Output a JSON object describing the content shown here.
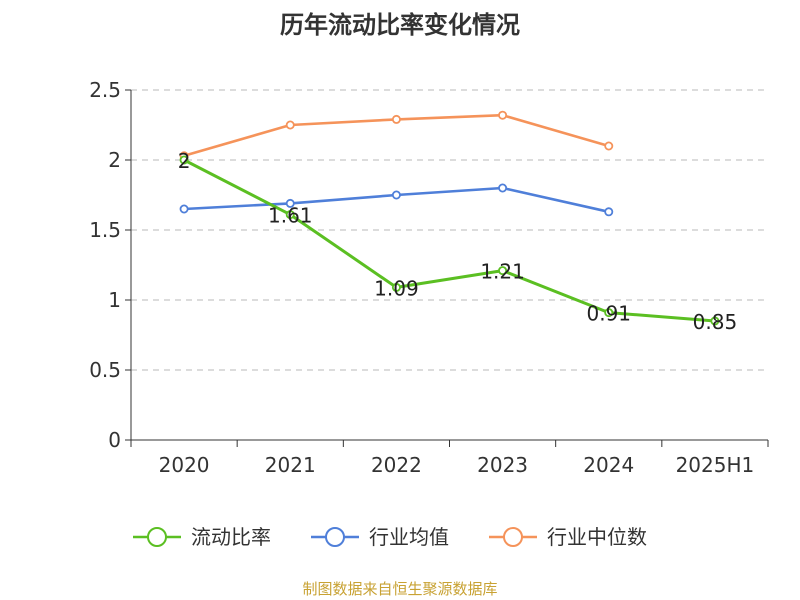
{
  "source_text": "制图数据来自恒生聚源数据库",
  "chart_data": {
    "type": "line",
    "title": "历年流动比率变化情况",
    "categories": [
      "2020",
      "2021",
      "2022",
      "2023",
      "2024",
      "2025H1"
    ],
    "y_ticks": [
      "0",
      "0.5",
      "1",
      "1.5",
      "2",
      "2.5"
    ],
    "ylim": [
      0,
      2.5
    ],
    "grid": true,
    "legend_position": "bottom",
    "series": [
      {
        "name": "流动比率",
        "color": "#5bbf22",
        "values": [
          2.0,
          1.61,
          1.09,
          1.21,
          0.91,
          0.85
        ],
        "labels": [
          "2",
          "1.61",
          "1.09",
          "1.21",
          "0.91",
          "0.85"
        ]
      },
      {
        "name": "行业均值",
        "color": "#4f7fd9",
        "values": [
          1.65,
          1.69,
          1.75,
          1.8,
          1.63,
          null
        ],
        "labels": []
      },
      {
        "name": "行业中位数",
        "color": "#f5935a",
        "values": [
          2.03,
          2.25,
          2.29,
          2.32,
          2.1,
          null
        ],
        "labels": []
      }
    ]
  }
}
